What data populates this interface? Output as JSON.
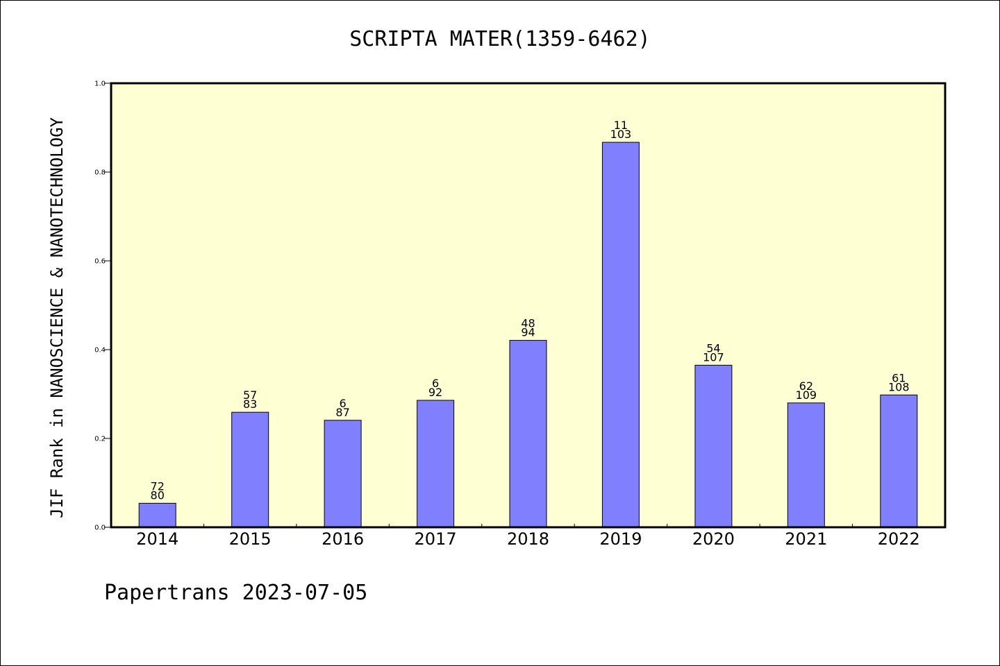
{
  "chart_data": {
    "type": "bar",
    "title": "SCRIPTA MATER(1359-6462)",
    "xlabel": "",
    "ylabel": "JIF Rank in NANOSCIENCE & NANOTECHNOLOGY",
    "ylim": [
      0,
      1.0
    ],
    "yticks": [
      "0.0",
      "0.2",
      "0.4",
      "0.6",
      "0.8",
      "1.0"
    ],
    "categories": [
      "2014",
      "2015",
      "2016",
      "2017",
      "2018",
      "2019",
      "2020",
      "2021",
      "2022"
    ],
    "values": [
      0.054,
      0.259,
      0.241,
      0.286,
      0.421,
      0.867,
      0.365,
      0.28,
      0.298
    ],
    "rank_labels": [
      "72",
      "57",
      "6",
      "6",
      "48",
      "11",
      "54",
      "62",
      "61"
    ],
    "total_labels": [
      "80",
      "83",
      "87",
      "92",
      "94",
      "103",
      "107",
      "109",
      "108"
    ],
    "grid": false,
    "colors": {
      "bar_fill": "#8080ff",
      "plot_background": "#ffffd4"
    }
  },
  "footer": "Papertrans 2023-07-05"
}
